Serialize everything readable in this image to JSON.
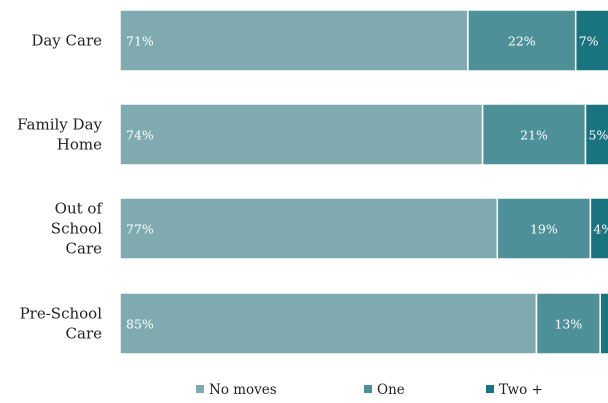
{
  "chart_data": {
    "type": "bar",
    "orientation": "horizontal",
    "stacked": true,
    "percent_stacked": true,
    "categories": [
      "Day Care",
      "Family Day Home",
      "Out of School Care",
      "Pre-School Care"
    ],
    "category_lines": [
      [
        "Day Care"
      ],
      [
        "Family Day",
        "Home"
      ],
      [
        "Out of",
        "School",
        "Care"
      ],
      [
        "Pre-School",
        "Care"
      ]
    ],
    "series": [
      {
        "name": "No moves",
        "values": [
          71,
          74,
          77,
          85
        ],
        "color": "#7fabb0"
      },
      {
        "name": "One",
        "values": [
          22,
          21,
          19,
          13
        ],
        "color": "#4e9097"
      },
      {
        "name": "Two +",
        "values": [
          7,
          5,
          4,
          2
        ],
        "color": "#1a7480"
      }
    ],
    "data_labels": [
      [
        "71%",
        "22%",
        "7%"
      ],
      [
        "74%",
        "21%",
        "5%"
      ],
      [
        "77%",
        "19%",
        "4%"
      ],
      [
        "85%",
        "13%",
        ""
      ]
    ],
    "title": "",
    "xlabel": "",
    "ylabel": "",
    "xlim": [
      0,
      100
    ],
    "grid": false,
    "legend_position": "bottom"
  }
}
